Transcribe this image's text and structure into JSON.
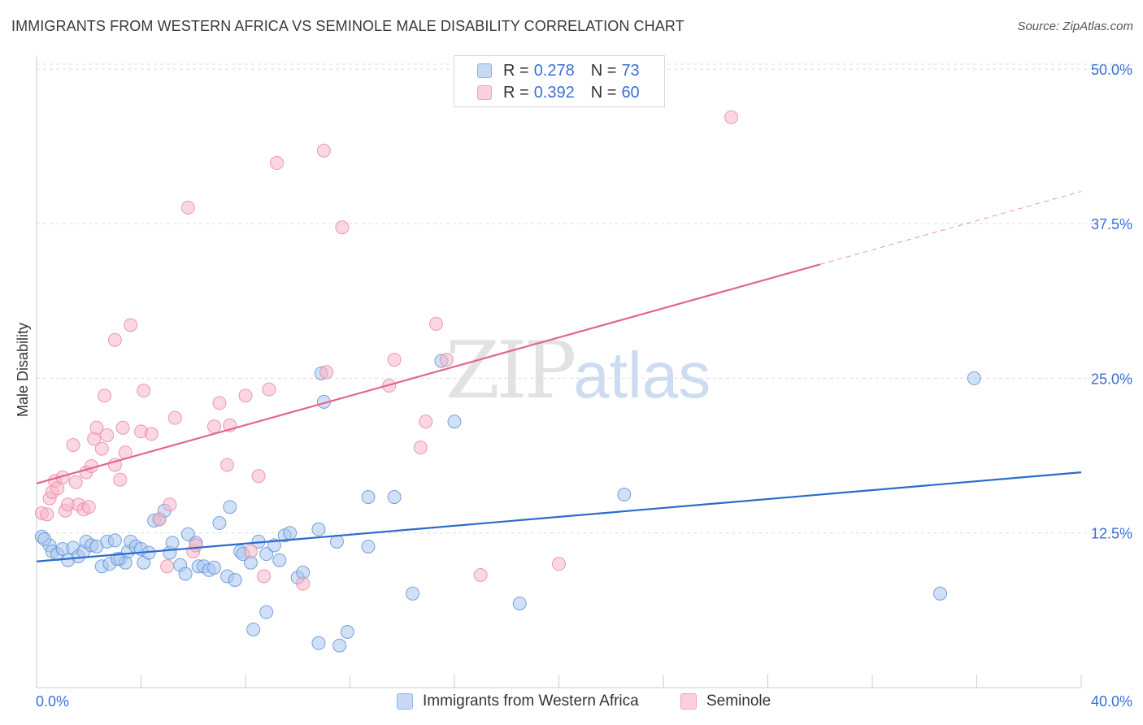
{
  "header": {
    "title": "IMMIGRANTS FROM WESTERN AFRICA VS SEMINOLE MALE DISABILITY CORRELATION CHART",
    "source": "Source: ZipAtlas.com"
  },
  "watermark": {
    "zip": "ZIP",
    "atlas": "atlas"
  },
  "legend": {
    "rows": [
      {
        "r_label": "R = ",
        "r_value": "0.278",
        "n_label": "N = ",
        "n_value": "73",
        "color": "#aac7ee"
      },
      {
        "r_label": "R = ",
        "r_value": "0.392",
        "n_label": "N = ",
        "n_value": "60",
        "color": "#f5b6c8"
      }
    ]
  },
  "bottom_legend": [
    {
      "label": "Immigrants from Western Africa",
      "color": "#aac7ee"
    },
    {
      "label": "Seminole",
      "color": "#f5b6c8"
    }
  ],
  "chart_data": {
    "type": "scatter",
    "title": "IMMIGRANTS FROM WESTERN AFRICA VS SEMINOLE MALE DISABILITY CORRELATION CHART",
    "xlabel": "",
    "ylabel": "Male Disability",
    "xlim": [
      0,
      40
    ],
    "ylim": [
      0,
      51.5
    ],
    "x_tick_labels": [
      "0.0%",
      "40.0%"
    ],
    "y_ticks": [
      12.5,
      25.0,
      37.5,
      50.0
    ],
    "y_tick_labels": [
      "12.5%",
      "25.0%",
      "37.5%",
      "50.0%"
    ],
    "grid": true,
    "legend_position": "top-center",
    "series": [
      {
        "name": "Immigrants from Western Africa",
        "color": "#aac7ee",
        "stroke": "#5b8fd6",
        "trend_color": "#2a6ccb",
        "trend": {
          "x0": 0,
          "y0": 10.2,
          "x1": 40,
          "y1": 17.4
        },
        "points": [
          [
            0.2,
            12.2
          ],
          [
            0.5,
            11.5
          ],
          [
            0.6,
            11.0
          ],
          [
            0.8,
            10.8
          ],
          [
            1.0,
            11.2
          ],
          [
            1.2,
            10.3
          ],
          [
            1.4,
            11.3
          ],
          [
            1.6,
            10.6
          ],
          [
            1.8,
            11.0
          ],
          [
            1.9,
            11.8
          ],
          [
            2.1,
            11.5
          ],
          [
            2.3,
            11.4
          ],
          [
            2.5,
            9.8
          ],
          [
            2.7,
            11.8
          ],
          [
            2.8,
            10.0
          ],
          [
            3.0,
            11.9
          ],
          [
            3.2,
            10.4
          ],
          [
            3.4,
            10.1
          ],
          [
            3.5,
            11.0
          ],
          [
            3.6,
            11.8
          ],
          [
            3.8,
            11.4
          ],
          [
            4.0,
            11.2
          ],
          [
            4.1,
            10.1
          ],
          [
            4.3,
            10.9
          ],
          [
            4.5,
            13.5
          ],
          [
            4.7,
            13.6
          ],
          [
            4.9,
            14.3
          ],
          [
            5.1,
            10.9
          ],
          [
            5.2,
            11.7
          ],
          [
            5.5,
            9.9
          ],
          [
            5.7,
            9.2
          ],
          [
            5.8,
            12.4
          ],
          [
            6.1,
            11.7
          ],
          [
            6.2,
            9.8
          ],
          [
            6.4,
            9.8
          ],
          [
            6.6,
            9.5
          ],
          [
            6.8,
            9.7
          ],
          [
            7.0,
            13.3
          ],
          [
            7.3,
            9.0
          ],
          [
            7.4,
            14.6
          ],
          [
            7.6,
            8.7
          ],
          [
            7.8,
            11.0
          ],
          [
            7.9,
            10.8
          ],
          [
            8.2,
            10.1
          ],
          [
            8.5,
            11.8
          ],
          [
            8.8,
            10.8
          ],
          [
            9.1,
            11.5
          ],
          [
            9.3,
            10.3
          ],
          [
            9.5,
            12.3
          ],
          [
            9.7,
            12.5
          ],
          [
            10.0,
            8.9
          ],
          [
            10.2,
            9.3
          ],
          [
            10.8,
            12.8
          ],
          [
            11.5,
            11.8
          ],
          [
            12.7,
            11.4
          ],
          [
            12.7,
            15.4
          ],
          [
            13.7,
            15.4
          ],
          [
            14.4,
            7.6
          ],
          [
            15.5,
            26.4
          ],
          [
            16.0,
            21.5
          ],
          [
            18.5,
            6.8
          ],
          [
            22.5,
            15.6
          ],
          [
            34.6,
            7.6
          ],
          [
            35.9,
            25.0
          ],
          [
            8.3,
            4.7
          ],
          [
            8.8,
            6.1
          ],
          [
            10.8,
            3.6
          ],
          [
            11.6,
            3.4
          ],
          [
            11.9,
            4.5
          ],
          [
            10.9,
            25.4
          ],
          [
            11.0,
            23.1
          ],
          [
            3.1,
            10.4
          ],
          [
            0.3,
            12.0
          ]
        ]
      },
      {
        "name": "Seminole",
        "color": "#f5b6c8",
        "stroke": "#e883a4",
        "trend_color": "#e36591",
        "trend": {
          "x0": 0,
          "y0": 16.5,
          "x1": 30,
          "y1": 34.2
        },
        "trend_dashed": {
          "x0": 30,
          "y0": 34.2,
          "x1": 40,
          "y1": 40.1
        },
        "points": [
          [
            0.2,
            14.1
          ],
          [
            0.4,
            14.0
          ],
          [
            0.5,
            15.3
          ],
          [
            0.6,
            15.8
          ],
          [
            0.7,
            16.7
          ],
          [
            0.8,
            16.1
          ],
          [
            1.0,
            17.0
          ],
          [
            1.1,
            14.3
          ],
          [
            1.2,
            14.8
          ],
          [
            1.4,
            19.6
          ],
          [
            1.5,
            16.6
          ],
          [
            1.6,
            14.8
          ],
          [
            1.8,
            14.4
          ],
          [
            1.9,
            17.4
          ],
          [
            2.1,
            17.9
          ],
          [
            2.2,
            20.1
          ],
          [
            2.3,
            21.0
          ],
          [
            2.5,
            19.3
          ],
          [
            2.6,
            23.6
          ],
          [
            2.7,
            20.4
          ],
          [
            3.0,
            18.0
          ],
          [
            3.0,
            28.1
          ],
          [
            3.2,
            16.8
          ],
          [
            3.3,
            21.0
          ],
          [
            3.4,
            19.0
          ],
          [
            3.6,
            29.3
          ],
          [
            4.0,
            20.7
          ],
          [
            4.1,
            24.0
          ],
          [
            4.4,
            20.5
          ],
          [
            4.7,
            13.6
          ],
          [
            5.0,
            9.8
          ],
          [
            5.1,
            14.8
          ],
          [
            5.3,
            21.8
          ],
          [
            5.8,
            38.8
          ],
          [
            6.0,
            11.0
          ],
          [
            6.1,
            11.5
          ],
          [
            6.8,
            21.1
          ],
          [
            7.0,
            23.0
          ],
          [
            7.3,
            18.0
          ],
          [
            7.4,
            21.2
          ],
          [
            8.0,
            23.6
          ],
          [
            8.2,
            11.0
          ],
          [
            8.5,
            17.1
          ],
          [
            8.7,
            9.0
          ],
          [
            8.9,
            24.1
          ],
          [
            9.2,
            42.4
          ],
          [
            10.2,
            8.4
          ],
          [
            11.0,
            43.4
          ],
          [
            11.1,
            25.5
          ],
          [
            11.7,
            37.2
          ],
          [
            13.7,
            26.5
          ],
          [
            13.5,
            24.4
          ],
          [
            14.7,
            19.4
          ],
          [
            14.9,
            21.5
          ],
          [
            15.3,
            29.4
          ],
          [
            15.7,
            26.5
          ],
          [
            17.0,
            9.1
          ],
          [
            20.0,
            10.0
          ],
          [
            26.6,
            46.1
          ],
          [
            2.0,
            14.6
          ]
        ]
      }
    ]
  }
}
